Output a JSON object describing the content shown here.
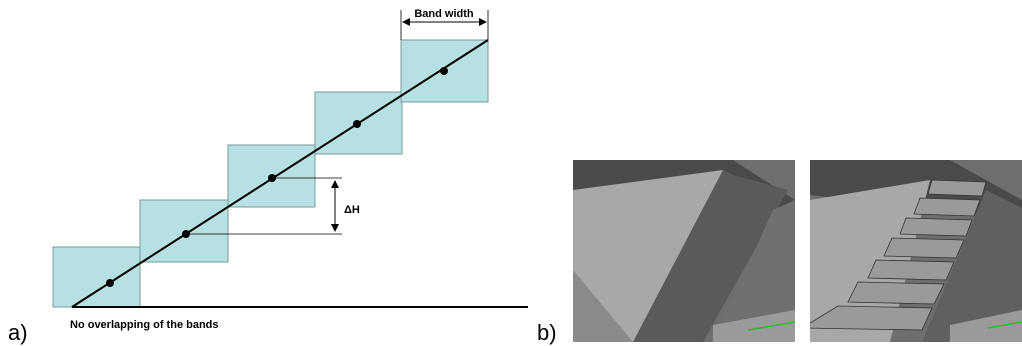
{
  "panel_a": {
    "label": "a)",
    "band_width": "Band width",
    "delta_h": "ΔH",
    "caption": "No overlapping of the bands"
  },
  "panel_b": {
    "label": "b)"
  }
}
